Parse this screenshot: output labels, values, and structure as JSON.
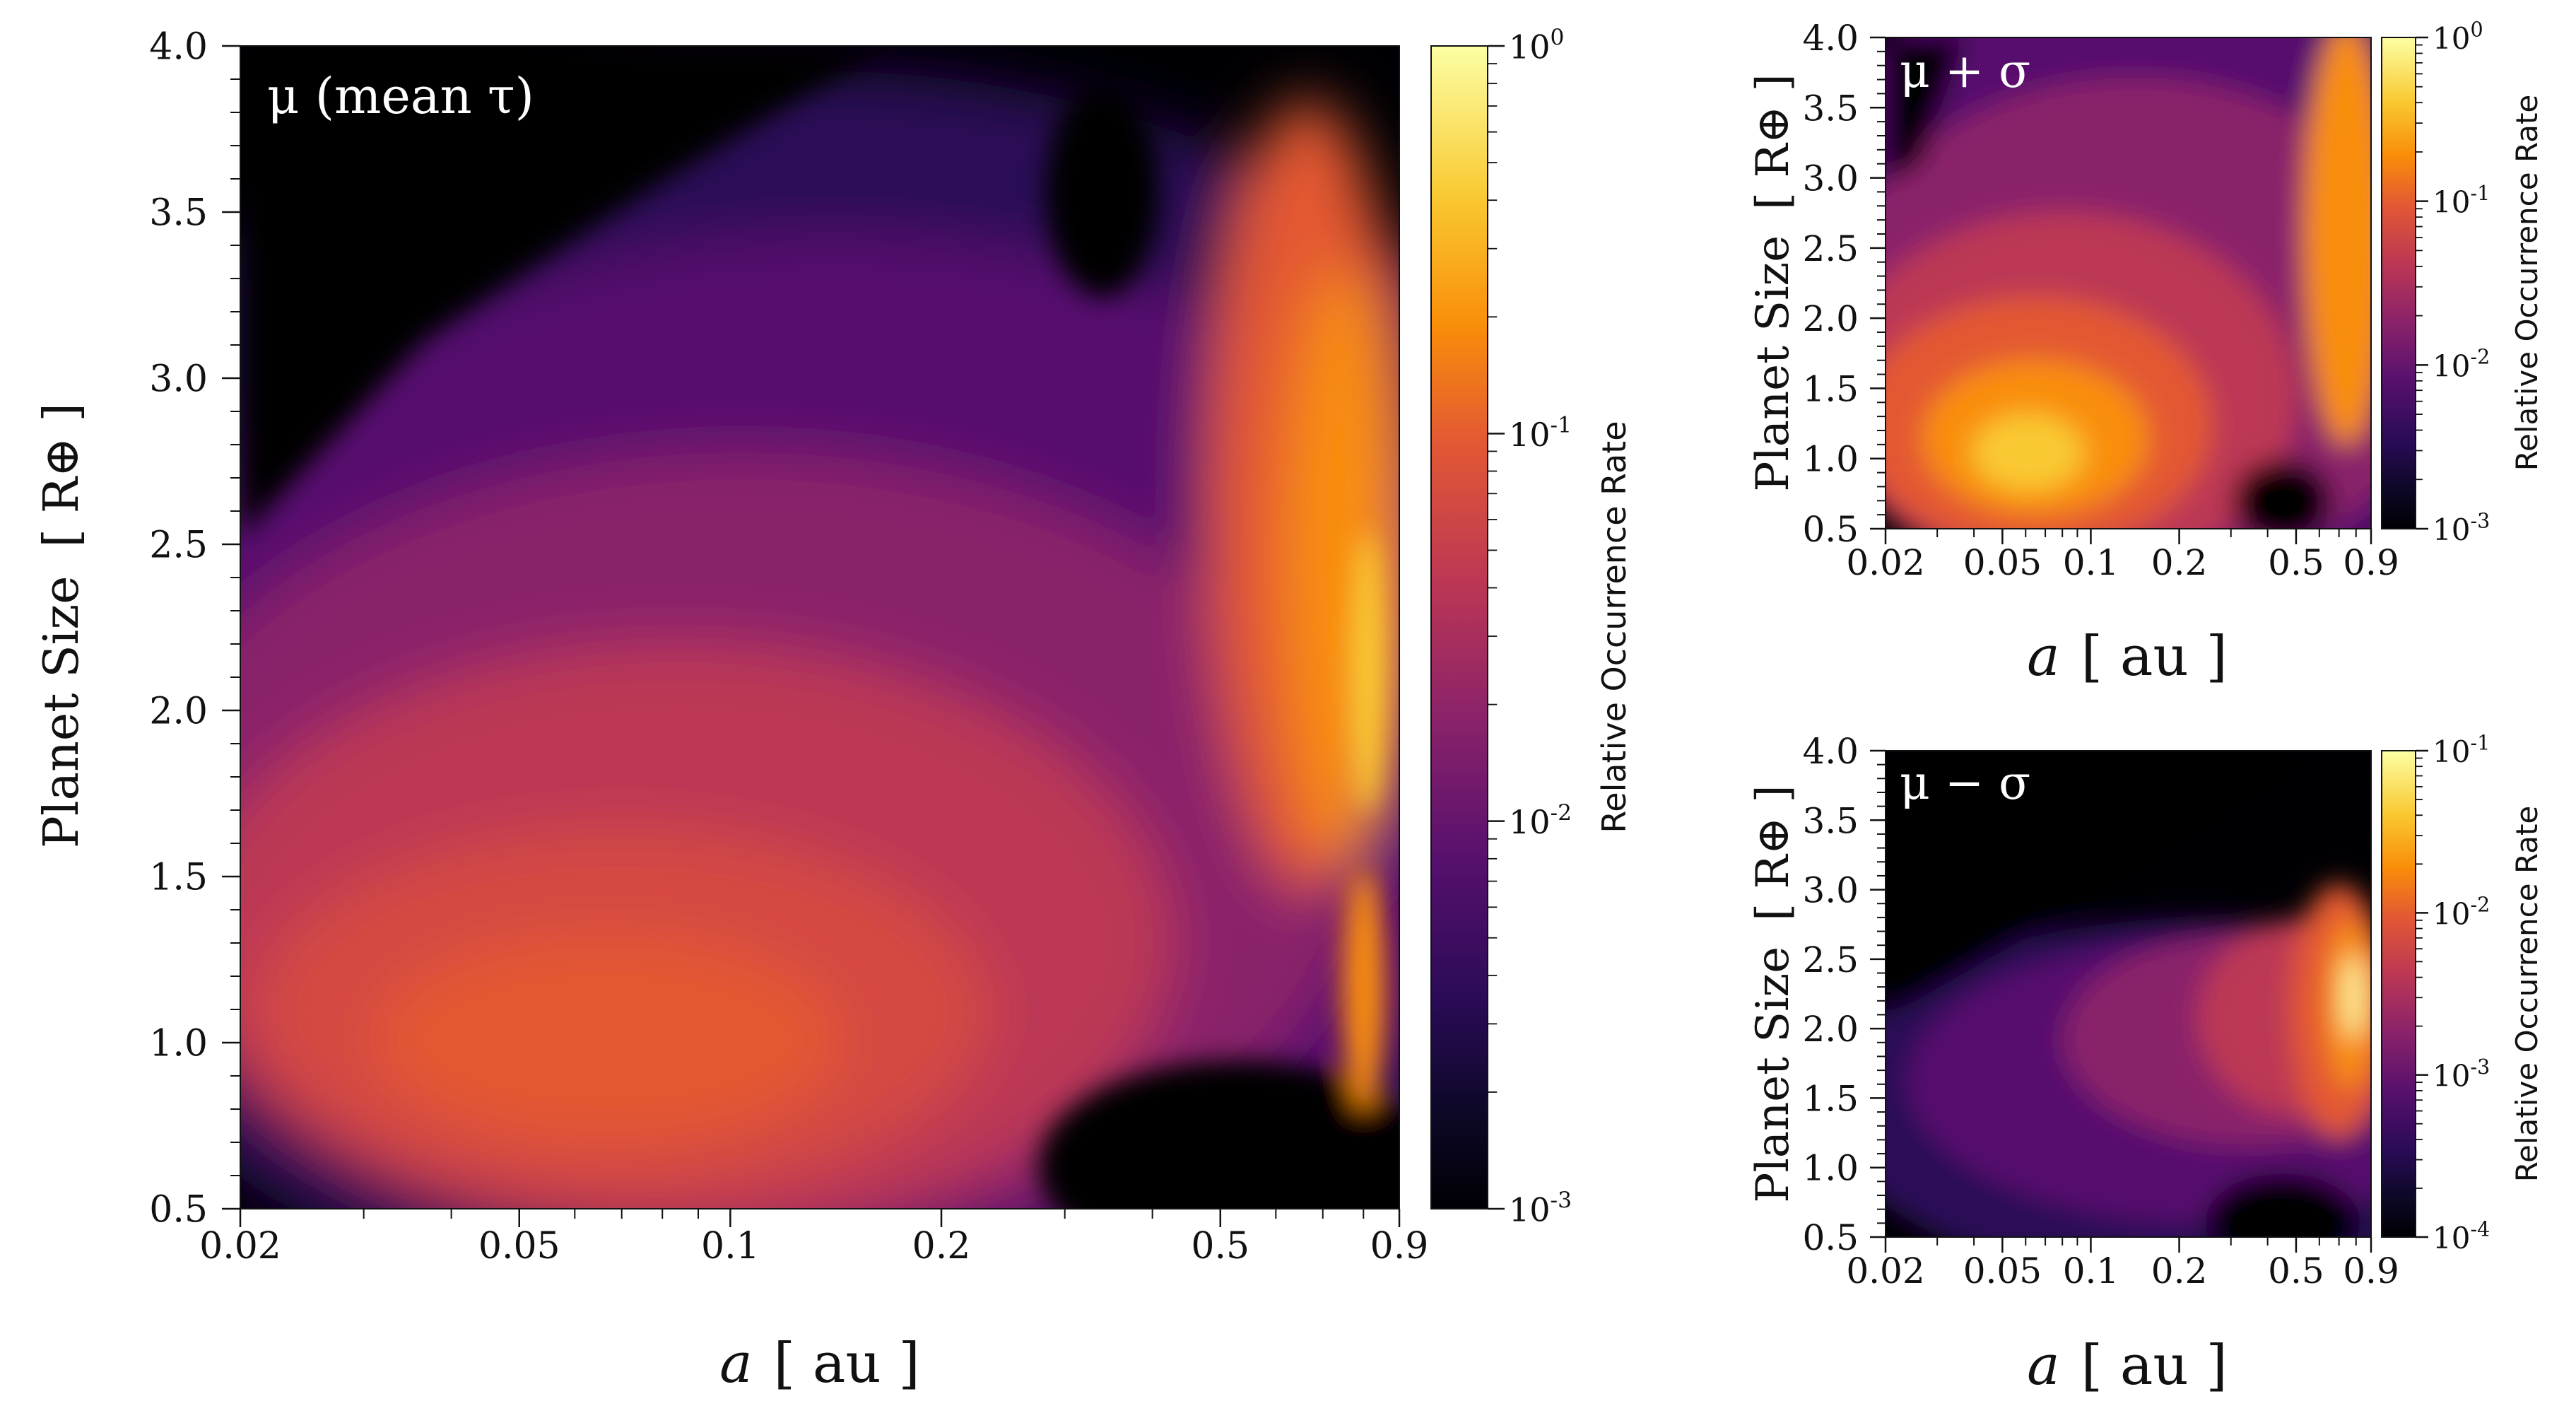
{
  "figure": {
    "common": {
      "xlabel_var": "a",
      "xlabel_unit": "[ au ]",
      "ylabel_text": "Planet Size",
      "ylabel_unit": "[ R⊕ ]",
      "colorbar_label": "Relative Occurrence Rate"
    }
  },
  "chart_data": [
    {
      "type": "heatmap",
      "title": "μ (mean τ)",
      "xlabel": "a [ au ]",
      "ylabel": "Planet Size [ R⊕ ]",
      "xscale": "log",
      "xlim": [
        0.02,
        0.9
      ],
      "ylim": [
        0.5,
        4.0
      ],
      "xticks": [
        0.02,
        0.05,
        0.1,
        0.2,
        0.5,
        0.9
      ],
      "xtick_labels": [
        "0.02",
        "0.05",
        "0.1",
        "0.2",
        "0.5",
        "0.9"
      ],
      "yticks": [
        0.5,
        1.0,
        1.5,
        2.0,
        2.5,
        3.0,
        3.5,
        4.0
      ],
      "ytick_labels": [
        "0.5",
        "1.0",
        "1.5",
        "2.0",
        "2.5",
        "3.0",
        "3.5",
        "4.0"
      ],
      "colorbar": {
        "label": "Relative Occurrence Rate",
        "scale": "log",
        "range": [
          0.001,
          1
        ],
        "tick_labels": [
          {
            "base": "10",
            "exp": "0"
          },
          {
            "base": "10",
            "exp": "-1"
          },
          {
            "base": "10",
            "exp": "-2"
          },
          {
            "base": "10",
            "exp": "-3"
          }
        ]
      },
      "colormap": "inferno",
      "features": {
        "peak_a_au": 0.07,
        "peak_size": 0.95,
        "peak_value": 0.1
      }
    },
    {
      "type": "heatmap",
      "title": "μ + σ",
      "xlabel": "a [ au ]",
      "ylabel": "Planet Size [ R⊕ ]",
      "xscale": "log",
      "xlim": [
        0.02,
        0.9
      ],
      "ylim": [
        0.5,
        4.0
      ],
      "xticks": [
        0.02,
        0.05,
        0.1,
        0.2,
        0.5,
        0.9
      ],
      "xtick_labels": [
        "0.02",
        "0.05",
        "0.1",
        "0.2",
        "0.5",
        "0.9"
      ],
      "yticks": [
        0.5,
        1.0,
        1.5,
        2.0,
        2.5,
        3.0,
        3.5,
        4.0
      ],
      "ytick_labels": [
        "0.5",
        "1.0",
        "1.5",
        "2.0",
        "2.5",
        "3.0",
        "3.5",
        "4.0"
      ],
      "colorbar": {
        "label": "Relative Occurrence Rate",
        "scale": "log",
        "range": [
          0.001,
          1
        ],
        "tick_labels": [
          {
            "base": "10",
            "exp": "0"
          },
          {
            "base": "10",
            "exp": "-1"
          },
          {
            "base": "10",
            "exp": "-2"
          },
          {
            "base": "10",
            "exp": "-3"
          }
        ]
      },
      "colormap": "inferno",
      "features": {
        "peak_a_au": 0.065,
        "peak_size": 1.1,
        "peak_value": 0.25
      }
    },
    {
      "type": "heatmap",
      "title": "μ − σ",
      "xlabel": "a [ au ]",
      "ylabel": "Planet Size [ R⊕ ]",
      "xscale": "log",
      "xlim": [
        0.02,
        0.9
      ],
      "ylim": [
        0.5,
        4.0
      ],
      "xticks": [
        0.02,
        0.05,
        0.1,
        0.2,
        0.5,
        0.9
      ],
      "xtick_labels": [
        "0.02",
        "0.05",
        "0.1",
        "0.2",
        "0.5",
        "0.9"
      ],
      "yticks": [
        0.5,
        1.0,
        1.5,
        2.0,
        2.5,
        3.0,
        3.5,
        4.0
      ],
      "ytick_labels": [
        "0.5",
        "1.0",
        "1.5",
        "2.0",
        "2.5",
        "3.0",
        "3.5",
        "4.0"
      ],
      "colorbar": {
        "label": "Relative Occurrence Rate",
        "scale": "log",
        "range": [
          0.0001,
          0.1
        ],
        "tick_labels": [
          {
            "base": "10",
            "exp": "-1"
          },
          {
            "base": "10",
            "exp": "-2"
          },
          {
            "base": "10",
            "exp": "-3"
          },
          {
            "base": "10",
            "exp": "-4"
          }
        ]
      },
      "colormap": "inferno",
      "features": {
        "peak_a_au": 0.8,
        "peak_size": 1.9,
        "peak_value": 0.05
      }
    }
  ]
}
